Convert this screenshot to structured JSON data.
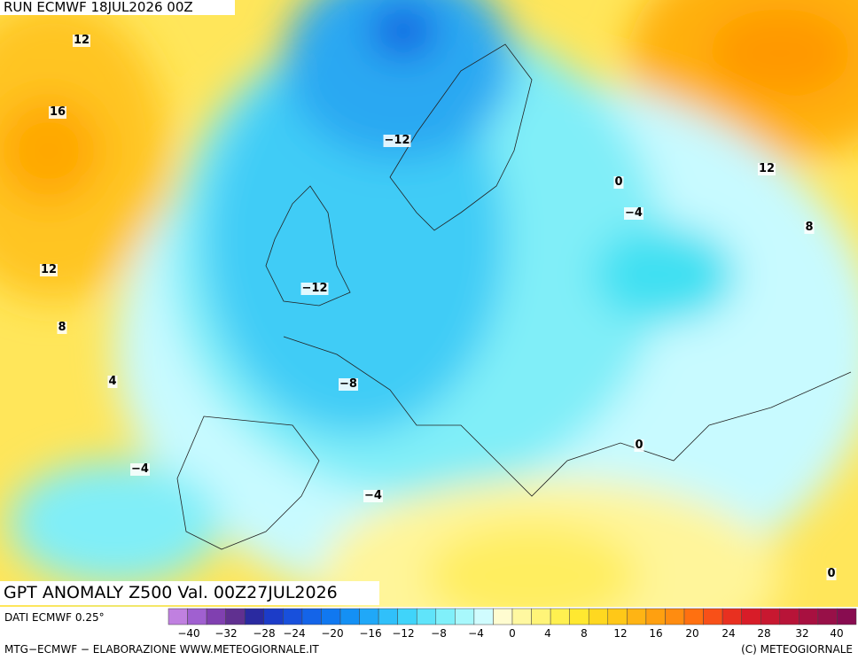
{
  "header": {
    "run": "RUN ECMWF 18JUL2026 00Z"
  },
  "map": {
    "contour_labels": [
      "12",
      "16",
      "12",
      "8",
      "4",
      "−12",
      "−12",
      "−8",
      "−4",
      "−4",
      "0",
      "−4",
      "12",
      "8",
      "0",
      "0"
    ]
  },
  "footer": {
    "title": "GPT ANOMALY Z500 Val. 00Z27JUL2026",
    "source": "DATI ECMWF 0.25°",
    "credit": "MTG−ECMWF − ELABORAZIONE WWW.METEOGIORNALE.IT",
    "copyright": "(C) METEOGIORNALE",
    "scale_labels": [
      "−40",
      "−32",
      "−28",
      "−24",
      "−20",
      "−16",
      "−12",
      "−8",
      "−4",
      "0",
      "4",
      "8",
      "12",
      "16",
      "20",
      "24",
      "28",
      "32",
      "40"
    ]
  }
}
